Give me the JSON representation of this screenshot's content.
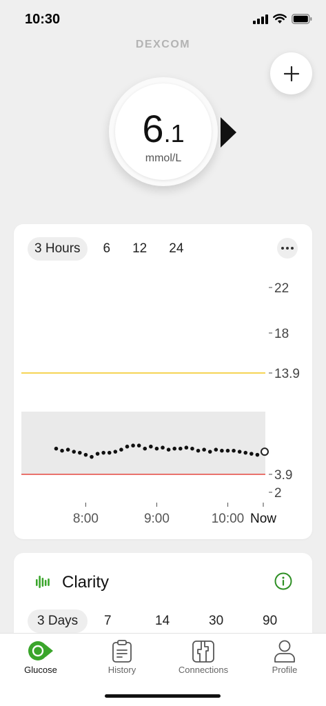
{
  "status_bar": {
    "time": "10:30"
  },
  "brand": "DEXCOM",
  "glucose": {
    "value_int": "6",
    "value_dec": ".1",
    "unit": "mmol/L",
    "trend": "steady"
  },
  "chart": {
    "tabs": [
      {
        "label": "3 Hours",
        "active": true
      },
      {
        "label": "6",
        "active": false
      },
      {
        "label": "12",
        "active": false
      },
      {
        "label": "24",
        "active": false
      }
    ]
  },
  "chart_data": {
    "type": "scatter",
    "title": "",
    "xlabel": "",
    "ylabel": "",
    "x_tick_labels": [
      "8:00",
      "9:00",
      "10:00",
      "Now"
    ],
    "y_tick_labels": [
      "22",
      "18",
      "13.9",
      "3.9",
      "2"
    ],
    "high_threshold": 13.9,
    "low_threshold": 3.9,
    "target_range": [
      3.9,
      10
    ],
    "ylim": [
      2,
      22
    ],
    "x_minutes_before_now": [
      175,
      170,
      165,
      160,
      155,
      150,
      145,
      140,
      135,
      130,
      125,
      120,
      115,
      110,
      105,
      100,
      95,
      90,
      85,
      80,
      75,
      70,
      65,
      60,
      55,
      50,
      45,
      40,
      35,
      30,
      25,
      20,
      15,
      10,
      5,
      0
    ],
    "values": [
      6.4,
      6.2,
      6.3,
      6.1,
      6.0,
      5.8,
      5.6,
      5.9,
      6.0,
      6.0,
      6.1,
      6.3,
      6.6,
      6.7,
      6.7,
      6.4,
      6.6,
      6.4,
      6.5,
      6.3,
      6.4,
      6.4,
      6.5,
      6.4,
      6.2,
      6.3,
      6.1,
      6.3,
      6.2,
      6.2,
      6.2,
      6.1,
      6.0,
      5.9,
      5.8,
      6.1
    ],
    "grid": false
  },
  "clarity": {
    "title": "Clarity",
    "tabs": [
      {
        "label": "3 Days",
        "active": true
      },
      {
        "label": "7",
        "active": false
      },
      {
        "label": "14",
        "active": false
      },
      {
        "label": "30",
        "active": false
      },
      {
        "label": "90",
        "active": false
      }
    ]
  },
  "nav": {
    "items": [
      {
        "label": "Glucose",
        "icon": "glucose-icon",
        "active": true
      },
      {
        "label": "History",
        "icon": "clipboard-icon",
        "active": false
      },
      {
        "label": "Connections",
        "icon": "connections-icon",
        "active": false
      },
      {
        "label": "Profile",
        "icon": "person-icon",
        "active": false
      }
    ]
  },
  "colors": {
    "accent_green": "#3aa52b",
    "high_line": "#f2c51d",
    "low_line": "#e5463f",
    "target_band": "#eaeaea",
    "card_bg": "#ffffff",
    "page_bg": "#efefef"
  }
}
